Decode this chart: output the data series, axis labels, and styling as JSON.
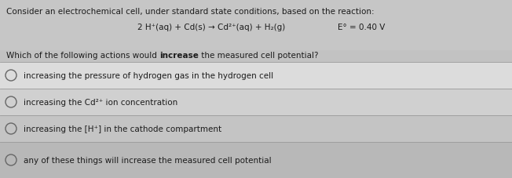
{
  "bg_top": "#c8c8c8",
  "bg_options": "#bebebe",
  "header_text": "Consider an electrochemical cell, under standard state conditions, based on the reaction:",
  "reaction_text": "2 H⁺(aq) + Cd(s) → Cd²⁺(aq) + H₂(g)",
  "potential_text": "E° = 0.40 V",
  "question_plain1": "Which of the following actions would ",
  "question_bold": "increase",
  "question_plain2": " the measured cell potential?",
  "options": [
    "increasing the pressure of hydrogen gas in the hydrogen cell",
    "increasing the Cd²⁺ ion concentration",
    "increasing the [H⁺] in the cathode compartment",
    "any of these things will increase the measured cell potential"
  ],
  "option_row_colors": [
    "#e0e0e0",
    "#d4d4d4",
    "#c8c8c8",
    "#bcbcbc"
  ],
  "divider_color": "#999999",
  "text_color": "#1c1c1c",
  "circle_color": "#666666",
  "header_fontsize": 7.5,
  "reaction_fontsize": 7.5,
  "question_fontsize": 7.5,
  "option_fontsize": 7.5
}
